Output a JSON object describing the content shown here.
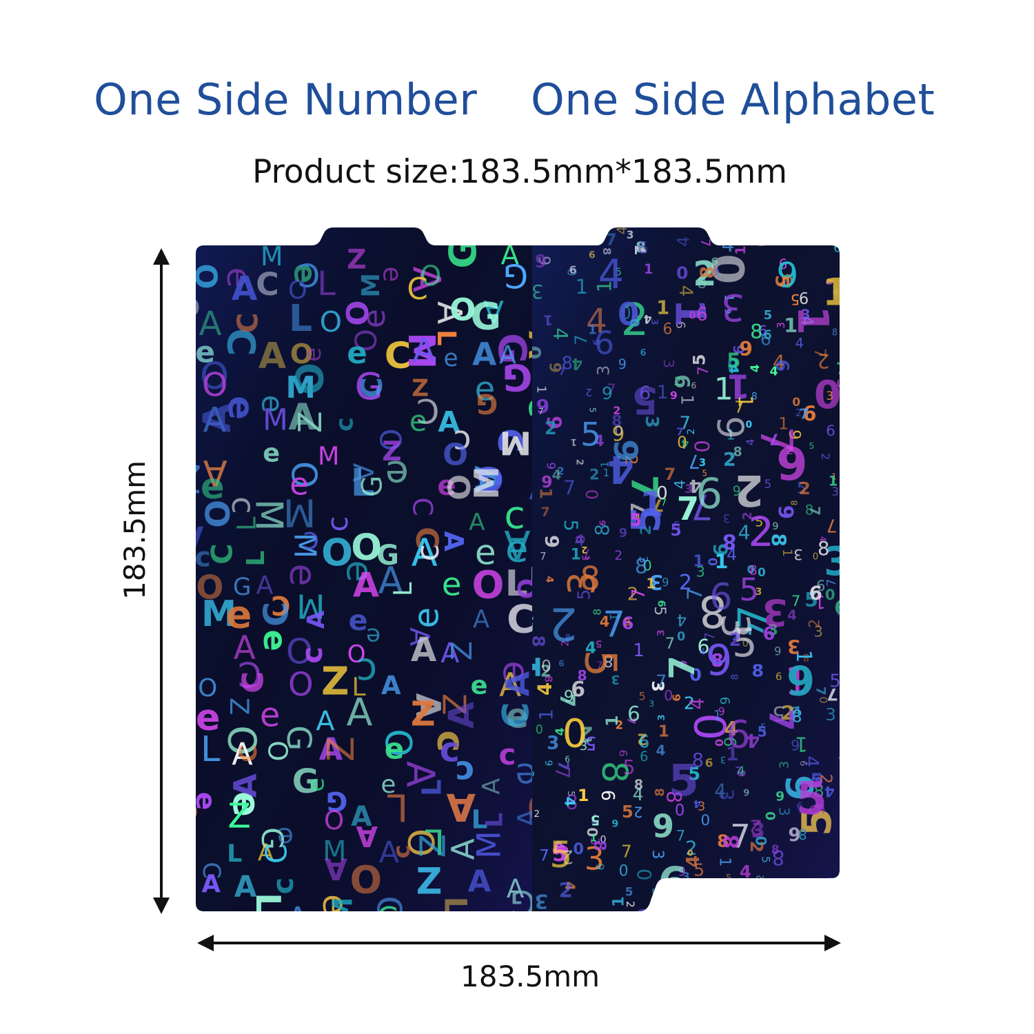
{
  "heading": {
    "left": "One Side Number",
    "right": "One Side Alphabet"
  },
  "product_size": "Product size:183.5mm*183.5mm",
  "dimensions": {
    "height_label": "183.5mm",
    "width_label": "183.5mm"
  },
  "colors": {
    "heading": "#1f4e9a",
    "plate_left_base": "#0a0f2c",
    "plate_right_base": "#0c1230"
  }
}
